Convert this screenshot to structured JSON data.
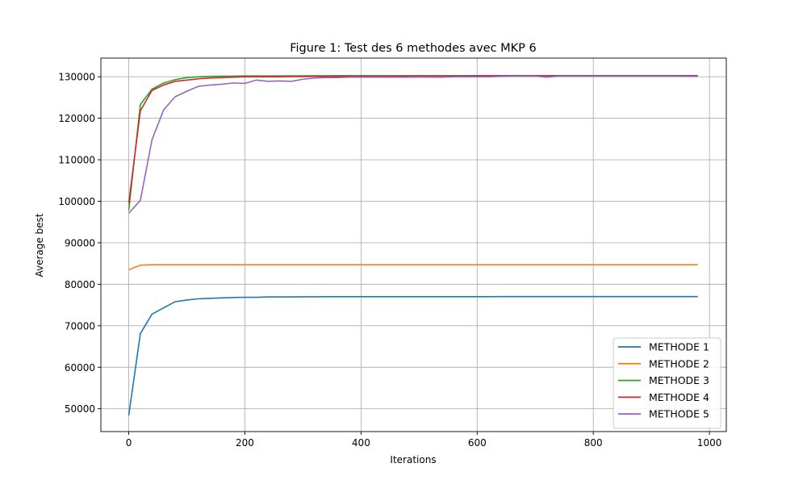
{
  "chart_data": {
    "type": "line",
    "title": "Figure 1: Test des 6 methodes avec MKP 6",
    "xlabel": "Iterations",
    "ylabel": "Average best",
    "xlim": [
      -48,
      1029
    ],
    "ylim": [
      44500,
      134500
    ],
    "xticks": [
      0,
      200,
      400,
      600,
      800,
      1000
    ],
    "yticks": [
      50000,
      60000,
      70000,
      80000,
      90000,
      100000,
      110000,
      120000,
      130000
    ],
    "grid": true,
    "legend_position": "lower-right",
    "x": [
      0,
      20,
      40,
      60,
      80,
      100,
      120,
      140,
      160,
      180,
      200,
      220,
      240,
      260,
      280,
      300,
      320,
      340,
      360,
      380,
      400,
      420,
      440,
      460,
      480,
      500,
      520,
      540,
      560,
      580,
      600,
      620,
      640,
      660,
      680,
      700,
      720,
      740,
      760,
      780,
      800,
      820,
      840,
      860,
      880,
      900,
      920,
      940,
      960,
      980
    ],
    "series": [
      {
        "name": "METHODE 1",
        "color": "#1f77b4",
        "values": [
          48400,
          68100,
          72800,
          74300,
          75800,
          76200,
          76500,
          76600,
          76700,
          76800,
          76850,
          76850,
          76950,
          76950,
          76950,
          76980,
          76980,
          76990,
          76990,
          77000,
          77000,
          77000,
          77000,
          77000,
          77000,
          77000,
          77000,
          77000,
          77000,
          77000,
          77000,
          77000,
          77020,
          77020,
          77020,
          77020,
          77020,
          77020,
          77020,
          77020,
          77020,
          77020,
          77020,
          77020,
          77020,
          77020,
          77020,
          77020,
          77020,
          77020
        ]
      },
      {
        "name": "METHODE 2",
        "color": "#ff7f0e",
        "values": [
          83500,
          84600,
          84700,
          84700,
          84700,
          84700,
          84700,
          84700,
          84700,
          84700,
          84700,
          84700,
          84700,
          84700,
          84700,
          84700,
          84700,
          84700,
          84700,
          84700,
          84700,
          84700,
          84700,
          84700,
          84700,
          84700,
          84700,
          84700,
          84700,
          84700,
          84700,
          84700,
          84700,
          84700,
          84700,
          84700,
          84700,
          84700,
          84700,
          84700,
          84700,
          84700,
          84700,
          84700,
          84700,
          84700,
          84700,
          84700,
          84700,
          84700
        ]
      },
      {
        "name": "METHODE 3",
        "color": "#2ca02c",
        "values": [
          97800,
          123300,
          127000,
          128500,
          129300,
          129800,
          130000,
          130100,
          130150,
          130150,
          130200,
          130200,
          130200,
          130200,
          130220,
          130220,
          130240,
          130240,
          130250,
          130250,
          130250,
          130250,
          130250,
          130250,
          130260,
          130260,
          130260,
          130260,
          130260,
          130260,
          130260,
          130260,
          130260,
          130260,
          130260,
          130260,
          130260,
          130260,
          130260,
          130260,
          130260,
          130260,
          130260,
          130260,
          130260,
          130260,
          130260,
          130260,
          130260,
          130260
        ]
      },
      {
        "name": "METHODE 4",
        "color": "#d62728",
        "values": [
          99500,
          121800,
          126700,
          128000,
          128900,
          129200,
          129500,
          129700,
          129800,
          129900,
          130000,
          130000,
          130000,
          130000,
          130050,
          130050,
          130100,
          130100,
          130100,
          130100,
          130100,
          130100,
          130100,
          130150,
          130150,
          130200,
          130200,
          130200,
          130200,
          130200,
          130250,
          130250,
          130250,
          130250,
          130250,
          130250,
          130250,
          130250,
          130250,
          130250,
          130250,
          130250,
          130250,
          130250,
          130250,
          130250,
          130250,
          130250,
          130250,
          130250
        ]
      },
      {
        "name": "METHODE 5",
        "color": "#9467bd",
        "values": [
          97100,
          100200,
          114800,
          122000,
          125200,
          126500,
          127700,
          128000,
          128200,
          128500,
          128400,
          129200,
          128900,
          129000,
          128900,
          129400,
          129700,
          129800,
          129800,
          129900,
          129900,
          129900,
          129900,
          129900,
          129900,
          129950,
          129900,
          129900,
          130000,
          130000,
          130000,
          130000,
          130100,
          130150,
          130150,
          130150,
          129900,
          130150,
          130150,
          130150,
          130150,
          130150,
          130150,
          130150,
          130150,
          130150,
          130150,
          130150,
          130100,
          130100
        ]
      }
    ]
  }
}
